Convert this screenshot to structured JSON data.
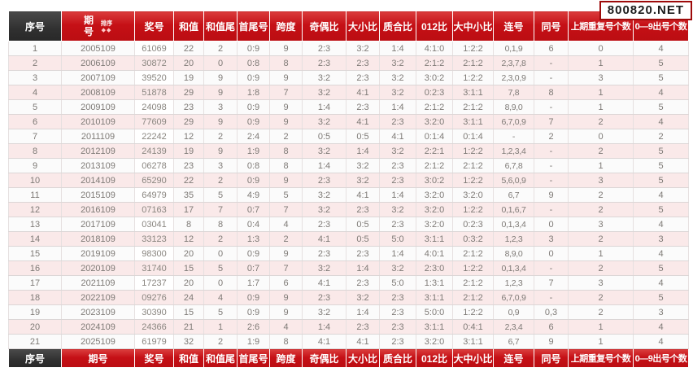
{
  "watermark": "800820.NET",
  "table": {
    "columns": [
      {
        "key": "xuhao",
        "label": "序号",
        "dark": true
      },
      {
        "key": "qihao",
        "label": "期号",
        "sortable": true,
        "sort_label": "排序",
        "sort_icons": "◆◆"
      },
      {
        "key": "jianghao",
        "label": "奖号"
      },
      {
        "key": "hezhi",
        "label": "和值"
      },
      {
        "key": "hezhiwei",
        "label": "和值尾"
      },
      {
        "key": "shouweihao",
        "label": "首尾号"
      },
      {
        "key": "kuadu",
        "label": "跨度"
      },
      {
        "key": "jioubi",
        "label": "奇偶比"
      },
      {
        "key": "daxiaobi",
        "label": "大小比"
      },
      {
        "key": "zhihebi",
        "label": "质合比"
      },
      {
        "key": "bi012",
        "label": "012比"
      },
      {
        "key": "dazhongxiaobi",
        "label": "大中小比"
      },
      {
        "key": "lianhao",
        "label": "连号"
      },
      {
        "key": "tonghao",
        "label": "同号"
      },
      {
        "key": "shangqichongfu",
        "label": "上期重复号个数",
        "long": true
      },
      {
        "key": "chuhaogeshu",
        "label": "0—9出号个数",
        "long": true
      }
    ],
    "rows": [
      [
        "1",
        "2005109",
        "61069",
        "22",
        "2",
        "0:9",
        "9",
        "2:3",
        "3:2",
        "1:4",
        "4:1:0",
        "1:2:2",
        "0,1,9",
        "6",
        "0",
        "4"
      ],
      [
        "2",
        "2006109",
        "30872",
        "20",
        "0",
        "0:8",
        "8",
        "2:3",
        "2:3",
        "3:2",
        "2:1:2",
        "2:1:2",
        "2,3,7,8",
        "-",
        "1",
        "5"
      ],
      [
        "3",
        "2007109",
        "39520",
        "19",
        "9",
        "0:9",
        "9",
        "3:2",
        "2:3",
        "3:2",
        "3:0:2",
        "1:2:2",
        "2,3,0,9",
        "-",
        "3",
        "5"
      ],
      [
        "4",
        "2008109",
        "51878",
        "29",
        "9",
        "1:8",
        "7",
        "3:2",
        "4:1",
        "3:2",
        "0:2:3",
        "3:1:1",
        "7,8",
        "8",
        "1",
        "4"
      ],
      [
        "5",
        "2009109",
        "24098",
        "23",
        "3",
        "0:9",
        "9",
        "1:4",
        "2:3",
        "1:4",
        "2:1:2",
        "2:1:2",
        "8,9,0",
        "-",
        "1",
        "5"
      ],
      [
        "6",
        "2010109",
        "77609",
        "29",
        "9",
        "0:9",
        "9",
        "3:2",
        "4:1",
        "2:3",
        "3:2:0",
        "3:1:1",
        "6,7,0,9",
        "7",
        "2",
        "4"
      ],
      [
        "7",
        "2011109",
        "22242",
        "12",
        "2",
        "2:4",
        "2",
        "0:5",
        "0:5",
        "4:1",
        "0:1:4",
        "0:1:4",
        "-",
        "2",
        "0",
        "2"
      ],
      [
        "8",
        "2012109",
        "24139",
        "19",
        "9",
        "1:9",
        "8",
        "3:2",
        "1:4",
        "3:2",
        "2:2:1",
        "1:2:2",
        "1,2,3,4",
        "-",
        "2",
        "5"
      ],
      [
        "9",
        "2013109",
        "06278",
        "23",
        "3",
        "0:8",
        "8",
        "1:4",
        "3:2",
        "2:3",
        "2:1:2",
        "2:1:2",
        "6,7,8",
        "-",
        "1",
        "5"
      ],
      [
        "10",
        "2014109",
        "65290",
        "22",
        "2",
        "0:9",
        "9",
        "2:3",
        "3:2",
        "2:3",
        "3:0:2",
        "1:2:2",
        "5,6,0,9",
        "-",
        "3",
        "5"
      ],
      [
        "11",
        "2015109",
        "64979",
        "35",
        "5",
        "4:9",
        "5",
        "3:2",
        "4:1",
        "1:4",
        "3:2:0",
        "3:2:0",
        "6,7",
        "9",
        "2",
        "4"
      ],
      [
        "12",
        "2016109",
        "07163",
        "17",
        "7",
        "0:7",
        "7",
        "3:2",
        "2:3",
        "3:2",
        "3:2:0",
        "1:2:2",
        "0,1,6,7",
        "-",
        "2",
        "5"
      ],
      [
        "13",
        "2017109",
        "03041",
        "8",
        "8",
        "0:4",
        "4",
        "2:3",
        "0:5",
        "2:3",
        "3:2:0",
        "0:2:3",
        "0,1,3,4",
        "0",
        "3",
        "4"
      ],
      [
        "14",
        "2018109",
        "33123",
        "12",
        "2",
        "1:3",
        "2",
        "4:1",
        "0:5",
        "5:0",
        "3:1:1",
        "0:3:2",
        "1,2,3",
        "3",
        "2",
        "3"
      ],
      [
        "15",
        "2019109",
        "98300",
        "20",
        "0",
        "0:9",
        "9",
        "2:3",
        "2:3",
        "1:4",
        "4:0:1",
        "2:1:2",
        "8,9,0",
        "0",
        "1",
        "4"
      ],
      [
        "16",
        "2020109",
        "31740",
        "15",
        "5",
        "0:7",
        "7",
        "3:2",
        "1:4",
        "3:2",
        "2:3:0",
        "1:2:2",
        "0,1,3,4",
        "-",
        "2",
        "5"
      ],
      [
        "17",
        "2021109",
        "17237",
        "20",
        "0",
        "1:7",
        "6",
        "4:1",
        "2:3",
        "5:0",
        "1:3:1",
        "2:1:2",
        "1,2,3",
        "7",
        "3",
        "4"
      ],
      [
        "18",
        "2022109",
        "09276",
        "24",
        "4",
        "0:9",
        "9",
        "2:3",
        "3:2",
        "2:3",
        "3:1:1",
        "2:1:2",
        "6,7,0,9",
        "-",
        "2",
        "5"
      ],
      [
        "19",
        "2023109",
        "30390",
        "15",
        "5",
        "0:9",
        "9",
        "3:2",
        "1:4",
        "2:3",
        "5:0:0",
        "1:2:2",
        "0,9",
        "0,3",
        "2",
        "3"
      ],
      [
        "20",
        "2024109",
        "24366",
        "21",
        "1",
        "2:6",
        "4",
        "1:4",
        "2:3",
        "2:3",
        "3:1:1",
        "0:4:1",
        "2,3,4",
        "6",
        "1",
        "4"
      ],
      [
        "21",
        "2025109",
        "61979",
        "32",
        "2",
        "1:9",
        "8",
        "4:1",
        "4:1",
        "2:3",
        "3:2:0",
        "3:1:1",
        "6,7",
        "9",
        "1",
        "4"
      ]
    ]
  }
}
